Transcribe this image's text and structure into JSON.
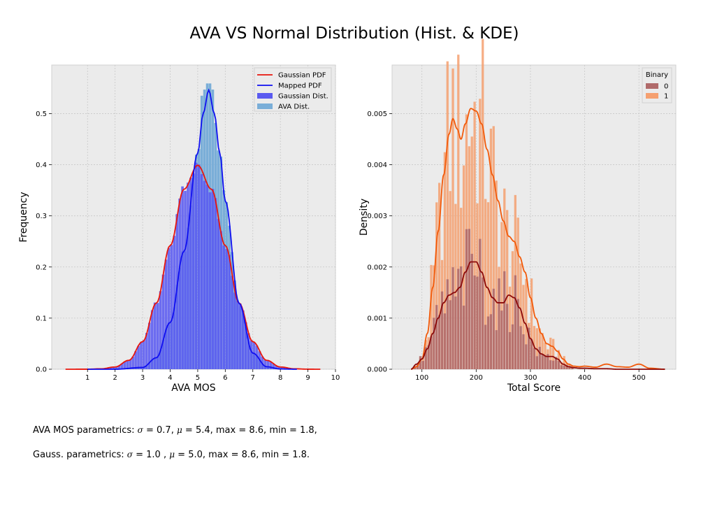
{
  "figure": {
    "title": "AVA VS Normal Distribution (Hist. & KDE)",
    "caption1": {
      "prefix": "AVA MOS parametrics: ",
      "sigma_symbol": "σ",
      "sigma_part": " = 0.7, ",
      "mu_symbol": "μ",
      "mu_part": " = 5.4, max = 8.6, min = 1.8,"
    },
    "caption2": {
      "prefix": "Gauss. parametrics: ",
      "sigma_symbol": "σ",
      "sigma_part": " = 1.0 , ",
      "mu_symbol": "μ",
      "mu_part": " = 5.0, max = 8.6, min = 1.8."
    },
    "background": "#ebebeb",
    "grid_color": "#c8c8c8"
  },
  "chart_data": [
    {
      "type": "histogram",
      "xlabel": "AVA MOS",
      "ylabel": "Frequency",
      "xlim": [
        -0.3,
        10.0
      ],
      "ylim": [
        0,
        0.595
      ],
      "xticks": [
        "1",
        "2",
        "3",
        "4",
        "5",
        "6",
        "7",
        "8",
        "9",
        "10"
      ],
      "yticks": [
        "0.0",
        "0.1",
        "0.2",
        "0.3",
        "0.4",
        "0.5"
      ],
      "ytick_values": [
        0,
        0.1,
        0.2,
        0.3,
        0.4,
        0.5
      ],
      "xtick_values": [
        1,
        2,
        3,
        4,
        5,
        6,
        7,
        8,
        9,
        10
      ],
      "grid": true,
      "legend_position": "top-right",
      "series": [
        {
          "name": "Gaussian PDF",
          "kind": "line",
          "color": "#e8160c",
          "x": [
            0.2,
            1.0,
            1.5,
            2.0,
            2.5,
            3.0,
            3.5,
            4.0,
            4.5,
            5.0,
            5.5,
            6.0,
            6.5,
            7.0,
            7.5,
            8.0,
            8.5,
            9.0,
            9.45
          ],
          "y": [
            0.0,
            0.0001,
            0.0009,
            0.0044,
            0.0175,
            0.054,
            0.1295,
            0.242,
            0.352,
            0.399,
            0.352,
            0.242,
            0.1295,
            0.054,
            0.0175,
            0.0044,
            0.0009,
            0.0001,
            0.0
          ]
        },
        {
          "name": "Mapped PDF",
          "kind": "line",
          "color": "#0f0ff0",
          "x": [
            1.0,
            2.0,
            3.0,
            3.5,
            4.0,
            4.5,
            5.0,
            5.2,
            5.4,
            5.6,
            5.8,
            6.0,
            6.5,
            7.0,
            7.5,
            8.0,
            8.6
          ],
          "y": [
            0.0,
            0.0,
            0.0035,
            0.0225,
            0.0915,
            0.2306,
            0.4227,
            0.5004,
            0.546,
            0.5004,
            0.4227,
            0.3292,
            0.1291,
            0.0316,
            0.0049,
            0.0005,
            0.0
          ]
        },
        {
          "name": "Gaussian Dist.",
          "kind": "histogram",
          "color": "#5a5af0",
          "bin_start": 1.5,
          "bin_end": 8.5,
          "bin_width": 0.1,
          "follows": "Gaussian PDF"
        },
        {
          "name": "AVA Dist.",
          "kind": "histogram",
          "color": "#7aaed8",
          "bin_start": 1.8,
          "bin_end": 8.6,
          "bin_width": 0.1,
          "follows": "Mapped PDF",
          "peak": 0.565
        }
      ]
    },
    {
      "type": "histogram",
      "xlabel": "Total Score",
      "ylabel": "Density",
      "xlim": [
        45,
        568
      ],
      "ylim": [
        0,
        0.00595
      ],
      "xticks": [
        "100",
        "200",
        "300",
        "400",
        "500"
      ],
      "xtick_values": [
        100,
        200,
        300,
        400,
        500
      ],
      "yticks": [
        "0.000",
        "0.001",
        "0.002",
        "0.003",
        "0.004",
        "0.005"
      ],
      "ytick_values": [
        0,
        0.001,
        0.002,
        0.003,
        0.004,
        0.005
      ],
      "grid": true,
      "legend_title": "Binary",
      "legend_position": "top-right",
      "series": [
        {
          "name": "1",
          "kind": "histogram+kde",
          "bar_color": "#f5a070",
          "line_color": "#f25a0a",
          "x": [
            80,
            90,
            100,
            110,
            120,
            130,
            140,
            150,
            157,
            165,
            172,
            180,
            190,
            200,
            210,
            220,
            230,
            240,
            250,
            260,
            270,
            280,
            290,
            300,
            310,
            320,
            330,
            340,
            350,
            360,
            370,
            380,
            390,
            400,
            420,
            440,
            460,
            480,
            500,
            520,
            548
          ],
          "y": [
            0.0,
            5e-05,
            0.0002,
            0.0007,
            0.0016,
            0.0027,
            0.0038,
            0.0046,
            0.0049,
            0.0047,
            0.0045,
            0.0048,
            0.0051,
            0.00505,
            0.0048,
            0.0043,
            0.0038,
            0.0033,
            0.0029,
            0.0026,
            0.0025,
            0.0022,
            0.0019,
            0.0014,
            0.001,
            0.0007,
            0.0005,
            0.00045,
            0.00035,
            0.0002,
            0.0001,
            6e-05,
            5e-05,
            6e-05,
            4e-05,
            0.0001,
            5e-05,
            4e-05,
            0.0001,
            2e-05,
            0.0
          ]
        },
        {
          "name": "0",
          "kind": "histogram+kde",
          "bar_color": "#b06a6a",
          "line_color": "#8c0a0a",
          "x": [
            80,
            90,
            100,
            110,
            120,
            130,
            140,
            150,
            160,
            170,
            180,
            190,
            200,
            210,
            220,
            230,
            240,
            250,
            260,
            270,
            280,
            290,
            300,
            310,
            320,
            330,
            340,
            350,
            360,
            370,
            380,
            390,
            400,
            420,
            440,
            460,
            480,
            500,
            520,
            548
          ],
          "y": [
            0.0,
            0.0001,
            0.0002,
            0.0004,
            0.0007,
            0.001,
            0.0013,
            0.00145,
            0.0015,
            0.0016,
            0.0019,
            0.0021,
            0.0021,
            0.0019,
            0.0016,
            0.0014,
            0.0013,
            0.0013,
            0.00145,
            0.0014,
            0.0012,
            0.0009,
            0.0006,
            0.0004,
            0.0003,
            0.00025,
            0.00025,
            0.0002,
            0.0001,
            5e-05,
            3e-05,
            2e-05,
            2e-05,
            1e-05,
            1e-05,
            0.0,
            0.0,
            0.0,
            0.0,
            0.0
          ]
        }
      ]
    }
  ]
}
